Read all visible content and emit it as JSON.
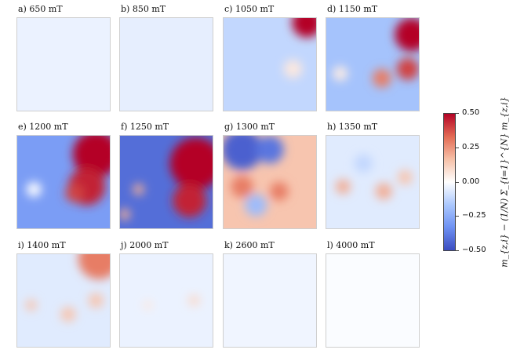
{
  "chart_data": {
    "type": "heatmap",
    "panels": [
      {
        "label": "a) 650 mT",
        "field_mT": 650,
        "bg": -0.04,
        "blobs": []
      },
      {
        "label": "b) 850 mT",
        "field_mT": 850,
        "bg": -0.05,
        "blobs": []
      },
      {
        "label": "c) 1050 mT",
        "field_mT": 1050,
        "bg": -0.12,
        "blobs": [
          {
            "x": 0.9,
            "y": 0.05,
            "r": 0.16,
            "v": 0.5
          },
          {
            "x": 0.75,
            "y": 0.55,
            "r": 0.1,
            "v": 0.06
          }
        ]
      },
      {
        "label": "d) 1150 mT",
        "field_mT": 1150,
        "bg": -0.18,
        "blobs": [
          {
            "x": 0.92,
            "y": 0.18,
            "r": 0.18,
            "v": 0.5
          },
          {
            "x": 0.88,
            "y": 0.55,
            "r": 0.12,
            "v": 0.4
          },
          {
            "x": 0.6,
            "y": 0.65,
            "r": 0.1,
            "v": 0.3
          },
          {
            "x": 0.15,
            "y": 0.6,
            "r": 0.08,
            "v": 0.05
          }
        ]
      },
      {
        "label": "e) 1200 mT",
        "field_mT": 1200,
        "bg": -0.3,
        "blobs": [
          {
            "x": 0.85,
            "y": 0.2,
            "r": 0.25,
            "v": 0.5
          },
          {
            "x": 0.75,
            "y": 0.55,
            "r": 0.2,
            "v": 0.45
          },
          {
            "x": 0.62,
            "y": 0.62,
            "r": 0.1,
            "v": 0.4
          },
          {
            "x": 0.18,
            "y": 0.58,
            "r": 0.08,
            "v": 0.0
          }
        ]
      },
      {
        "label": "f) 1250 mT",
        "field_mT": 1250,
        "bg": -0.42,
        "blobs": [
          {
            "x": 0.82,
            "y": 0.3,
            "r": 0.28,
            "v": 0.5
          },
          {
            "x": 0.75,
            "y": 0.7,
            "r": 0.18,
            "v": 0.45
          },
          {
            "x": 0.2,
            "y": 0.58,
            "r": 0.06,
            "v": 0.2
          },
          {
            "x": 0.05,
            "y": 0.85,
            "r": 0.06,
            "v": 0.2
          }
        ]
      },
      {
        "label": "g) 1300 mT",
        "field_mT": 1300,
        "bg": 0.15,
        "blobs": [
          {
            "x": 0.2,
            "y": 0.15,
            "r": 0.22,
            "v": -0.45
          },
          {
            "x": 0.5,
            "y": 0.15,
            "r": 0.15,
            "v": -0.4
          },
          {
            "x": 0.35,
            "y": 0.75,
            "r": 0.12,
            "v": -0.2
          },
          {
            "x": 0.2,
            "y": 0.55,
            "r": 0.12,
            "v": 0.3
          },
          {
            "x": 0.6,
            "y": 0.6,
            "r": 0.1,
            "v": 0.3
          }
        ]
      },
      {
        "label": "h) 1350 mT",
        "field_mT": 1350,
        "bg": -0.06,
        "blobs": [
          {
            "x": 0.18,
            "y": 0.55,
            "r": 0.08,
            "v": 0.2
          },
          {
            "x": 0.62,
            "y": 0.6,
            "r": 0.09,
            "v": 0.2
          },
          {
            "x": 0.85,
            "y": 0.45,
            "r": 0.08,
            "v": 0.15
          },
          {
            "x": 0.4,
            "y": 0.3,
            "r": 0.1,
            "v": -0.12
          }
        ]
      },
      {
        "label": "i) 1400 mT",
        "field_mT": 1400,
        "bg": -0.06,
        "blobs": [
          {
            "x": 0.88,
            "y": 0.05,
            "r": 0.22,
            "v": 0.3
          },
          {
            "x": 0.15,
            "y": 0.55,
            "r": 0.06,
            "v": 0.15
          },
          {
            "x": 0.55,
            "y": 0.65,
            "r": 0.08,
            "v": 0.15
          },
          {
            "x": 0.85,
            "y": 0.5,
            "r": 0.08,
            "v": 0.15
          }
        ]
      },
      {
        "label": "j) 2000 mT",
        "field_mT": 2000,
        "bg": -0.04,
        "blobs": [
          {
            "x": 0.8,
            "y": 0.5,
            "r": 0.06,
            "v": 0.1
          },
          {
            "x": 0.3,
            "y": 0.55,
            "r": 0.05,
            "v": 0.06
          }
        ]
      },
      {
        "label": "k) 2600 mT",
        "field_mT": 2600,
        "bg": -0.03,
        "blobs": []
      },
      {
        "label": "l) 4000 mT",
        "field_mT": 4000,
        "bg": -0.01,
        "blobs": []
      }
    ],
    "colorbar": {
      "label": "m_{z,i} − (1/N) Σ_{i=1}^{N} m_{z,i}",
      "vmin": -0.5,
      "vmax": 0.5,
      "ticks": [
        "0.50",
        "0.25",
        "0.00",
        "−0.25",
        "−0.50"
      ],
      "colormap": [
        "#3b4cc0",
        "#6f92f3",
        "#aac7fd",
        "#ffffff",
        "#f6bfa6",
        "#e36c55",
        "#b40426"
      ]
    }
  }
}
